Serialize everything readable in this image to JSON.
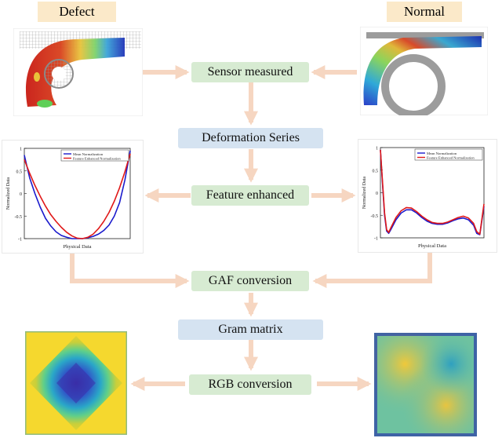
{
  "labels": {
    "defect": "Defect",
    "normal": "Normal"
  },
  "steps": {
    "sensor": "Sensor measured",
    "deformation": "Deformation Series",
    "feature": "Feature enhanced",
    "gaf": "GAF conversion",
    "gram": "Gram matrix",
    "rgb": "RGB conversion"
  },
  "colors": {
    "arrow": "#f6d6c1",
    "step_green": "#d7ebd2",
    "step_blue": "#d5e3f1",
    "label_bg": "#fbe9c9",
    "series_mean": "#1a1acc",
    "series_feature": "#e01818"
  },
  "chart_data": [
    {
      "type": "line",
      "xlabel": "Physical Data",
      "ylabel": "Normalized Data",
      "ylim": [
        -1,
        1
      ],
      "yticks": [
        "1",
        "0.5",
        "0",
        "-0.5",
        "-1"
      ],
      "legend": "top-right",
      "series": [
        {
          "name": "Mean Normalization",
          "x": [
            0,
            0.05,
            0.1,
            0.15,
            0.2,
            0.25,
            0.3,
            0.35,
            0.4,
            0.45,
            0.5,
            0.55,
            0.6,
            0.65,
            0.7,
            0.75,
            0.8,
            0.85,
            0.9,
            0.95,
            1
          ],
          "values": [
            0.85,
            0.35,
            0.0,
            -0.3,
            -0.55,
            -0.72,
            -0.85,
            -0.93,
            -0.97,
            -1.0,
            -1.0,
            -1.0,
            -0.98,
            -0.95,
            -0.9,
            -0.82,
            -0.7,
            -0.5,
            -0.2,
            0.3,
            0.95
          ]
        },
        {
          "name": "Feature Enhanced Normalization",
          "x": [
            0,
            0.05,
            0.1,
            0.15,
            0.2,
            0.25,
            0.3,
            0.35,
            0.4,
            0.45,
            0.5,
            0.55,
            0.6,
            0.65,
            0.7,
            0.75,
            0.8,
            0.85,
            0.9,
            0.95,
            1
          ],
          "values": [
            0.75,
            0.45,
            0.18,
            -0.06,
            -0.28,
            -0.47,
            -0.62,
            -0.75,
            -0.86,
            -0.94,
            -0.99,
            -1.0,
            -0.97,
            -0.9,
            -0.78,
            -0.62,
            -0.42,
            -0.17,
            0.13,
            0.48,
            0.88
          ]
        }
      ]
    },
    {
      "type": "line",
      "xlabel": "Physical Data",
      "ylabel": "Normalized Data",
      "ylim": [
        -1,
        1
      ],
      "yticks": [
        "1",
        "0.5",
        "0",
        "-0.5",
        "-1"
      ],
      "legend": "top-right",
      "series": [
        {
          "name": "Mean Normalization",
          "x": [
            0,
            0.02,
            0.04,
            0.06,
            0.08,
            0.1,
            0.15,
            0.2,
            0.25,
            0.3,
            0.35,
            0.4,
            0.45,
            0.5,
            0.55,
            0.6,
            0.65,
            0.7,
            0.75,
            0.8,
            0.85,
            0.9,
            0.93,
            0.96,
            1
          ],
          "values": [
            0.95,
            0.2,
            -0.5,
            -0.85,
            -0.9,
            -0.82,
            -0.6,
            -0.45,
            -0.38,
            -0.38,
            -0.45,
            -0.55,
            -0.63,
            -0.68,
            -0.7,
            -0.7,
            -0.67,
            -0.62,
            -0.58,
            -0.56,
            -0.6,
            -0.72,
            -0.9,
            -0.93,
            -0.3
          ]
        },
        {
          "name": "Feature Enhanced Normalization",
          "x": [
            0,
            0.02,
            0.04,
            0.06,
            0.08,
            0.1,
            0.15,
            0.2,
            0.25,
            0.3,
            0.35,
            0.4,
            0.45,
            0.5,
            0.55,
            0.6,
            0.65,
            0.7,
            0.75,
            0.8,
            0.85,
            0.9,
            0.93,
            0.96,
            1
          ],
          "values": [
            0.95,
            0.25,
            -0.45,
            -0.82,
            -0.88,
            -0.78,
            -0.55,
            -0.4,
            -0.33,
            -0.34,
            -0.42,
            -0.52,
            -0.6,
            -0.66,
            -0.68,
            -0.68,
            -0.65,
            -0.6,
            -0.55,
            -0.52,
            -0.56,
            -0.68,
            -0.86,
            -0.92,
            -0.25
          ]
        }
      ]
    }
  ]
}
